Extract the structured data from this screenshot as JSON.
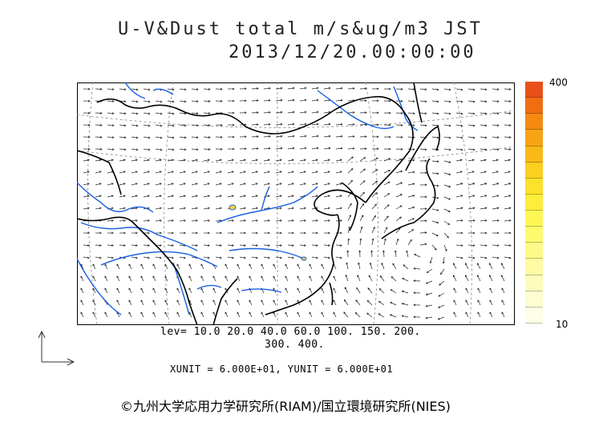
{
  "title": {
    "line1": "U-V&Dust total m/s&ug/m3 JST",
    "line2": "2013/12/20.00:00:00"
  },
  "colorbar": {
    "max_label": "400",
    "min_label": "10",
    "colors": [
      "#e8501a",
      "#f06e12",
      "#f48a10",
      "#f7a314",
      "#f9ba18",
      "#fbd01e",
      "#fce22a",
      "#fdee3c",
      "#fef654",
      "#fef96e",
      "#fefa8a",
      "#fefba4",
      "#fefcbc",
      "#fefdd2",
      "#fffee6"
    ]
  },
  "legend": {
    "lev_line1": "lev= 10.0 20.0 40.0 60.0 100. 150. 200.",
    "lev_line2": "300. 400.",
    "units": "XUNIT = 6.000E+01, YUNIT = 6.000E+01"
  },
  "copyright": "©九州大学応用力学研究所(RIAM)/国立環境研究所(NIES)",
  "map_colors": {
    "coast": "#000000",
    "rivers": "#1a5fe0",
    "vectors": "#222222",
    "graticule": "#888888"
  }
}
